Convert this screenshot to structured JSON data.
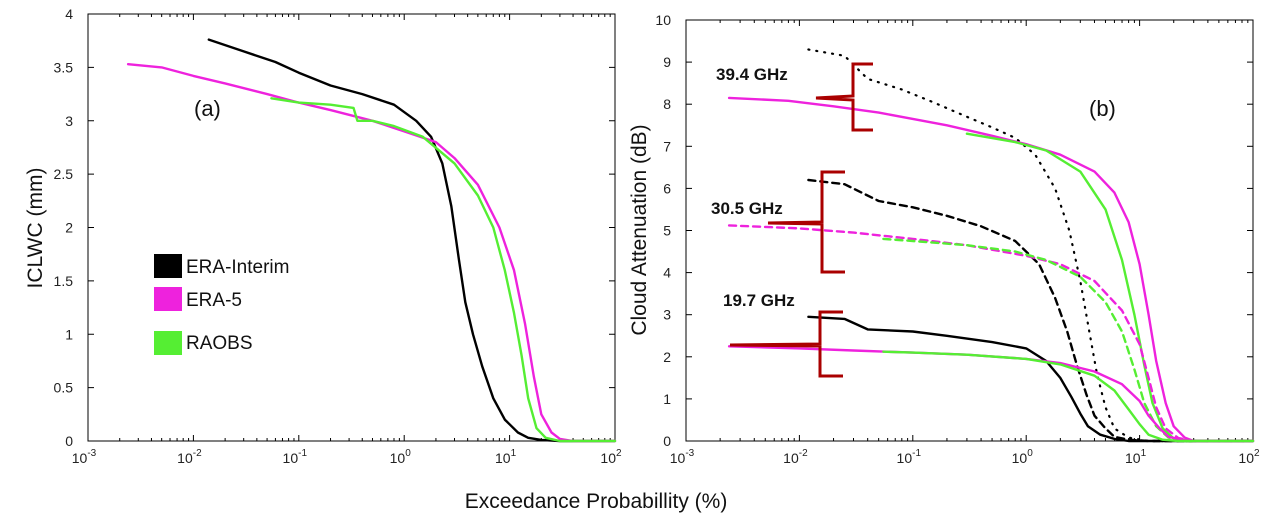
{
  "figure": {
    "xlabel": "Exceedance Probabillity (%)"
  },
  "colors": {
    "era_interim": "#000000",
    "era5": "#ee22dd",
    "raobs": "#55ee33",
    "brace": "#aa0000"
  },
  "chart_data": [
    {
      "type": "line",
      "panel_label": "(a)",
      "xscale": "log",
      "xlim": [
        0.001,
        100
      ],
      "ylim": [
        0,
        4
      ],
      "xlabel": "Exceedance Probabillity (%)",
      "ylabel": "ICLWC (mm)",
      "x_ticks": [
        {
          "v": 0.001,
          "base": "10",
          "exp": "-3"
        },
        {
          "v": 0.01,
          "base": "10",
          "exp": "-2"
        },
        {
          "v": 0.1,
          "base": "10",
          "exp": "-1"
        },
        {
          "v": 1,
          "base": "10",
          "exp": "0"
        },
        {
          "v": 10,
          "base": "10",
          "exp": "1"
        },
        {
          "v": 100,
          "base": "10",
          "exp": "2"
        }
      ],
      "y_ticks": [
        "0",
        "0.5",
        "1",
        "1.5",
        "2",
        "2.5",
        "3",
        "3.5",
        "4"
      ],
      "legend": [
        {
          "name": "ERA-Interim",
          "color": "#000000"
        },
        {
          "name": "ERA-5",
          "color": "#ee22dd"
        },
        {
          "name": "RAOBS",
          "color": "#55ee33"
        }
      ],
      "series": [
        {
          "name": "ERA-Interim",
          "color": "#000000",
          "points": [
            [
              0.014,
              3.76
            ],
            [
              0.03,
              3.65
            ],
            [
              0.06,
              3.55
            ],
            [
              0.1,
              3.45
            ],
            [
              0.2,
              3.33
            ],
            [
              0.4,
              3.25
            ],
            [
              0.8,
              3.15
            ],
            [
              1.3,
              3.0
            ],
            [
              1.8,
              2.85
            ],
            [
              2.3,
              2.6
            ],
            [
              2.8,
              2.2
            ],
            [
              3.3,
              1.7
            ],
            [
              3.8,
              1.3
            ],
            [
              4.5,
              1.0
            ],
            [
              5.5,
              0.7
            ],
            [
              7,
              0.4
            ],
            [
              9,
              0.2
            ],
            [
              12,
              0.08
            ],
            [
              15,
              0.03
            ],
            [
              20,
              0.01
            ],
            [
              30,
              0
            ],
            [
              100,
              0
            ]
          ]
        },
        {
          "name": "ERA-5",
          "color": "#ee22dd",
          "points": [
            [
              0.0024,
              3.53
            ],
            [
              0.005,
              3.5
            ],
            [
              0.01,
              3.42
            ],
            [
              0.02,
              3.35
            ],
            [
              0.05,
              3.25
            ],
            [
              0.1,
              3.17
            ],
            [
              0.2,
              3.1
            ],
            [
              0.5,
              3.0
            ],
            [
              1,
              2.9
            ],
            [
              2,
              2.8
            ],
            [
              3,
              2.65
            ],
            [
              5,
              2.4
            ],
            [
              8,
              2.0
            ],
            [
              11,
              1.6
            ],
            [
              14,
              1.1
            ],
            [
              17,
              0.6
            ],
            [
              20,
              0.25
            ],
            [
              25,
              0.08
            ],
            [
              30,
              0.02
            ],
            [
              40,
              0
            ],
            [
              100,
              0
            ]
          ]
        },
        {
          "name": "RAOBS",
          "color": "#55ee33",
          "points": [
            [
              0.055,
              3.21
            ],
            [
              0.1,
              3.17
            ],
            [
              0.2,
              3.15
            ],
            [
              0.33,
              3.12
            ],
            [
              0.36,
              3.0
            ],
            [
              0.5,
              3.0
            ],
            [
              0.8,
              2.95
            ],
            [
              1.5,
              2.85
            ],
            [
              3,
              2.6
            ],
            [
              5,
              2.3
            ],
            [
              7,
              2.0
            ],
            [
              9,
              1.6
            ],
            [
              11,
              1.2
            ],
            [
              13,
              0.8
            ],
            [
              15,
              0.4
            ],
            [
              18,
              0.12
            ],
            [
              22,
              0.03
            ],
            [
              30,
              0
            ],
            [
              100,
              0
            ]
          ]
        }
      ]
    },
    {
      "type": "line",
      "panel_label": "(b)",
      "xscale": "log",
      "xlim": [
        0.001,
        100
      ],
      "ylim": [
        0,
        10
      ],
      "xlabel": "Exceedance Probabillity (%)",
      "ylabel": "Cloud Attenuation (dB)",
      "x_ticks": [
        {
          "v": 0.001,
          "base": "10",
          "exp": "-3"
        },
        {
          "v": 0.01,
          "base": "10",
          "exp": "-2"
        },
        {
          "v": 0.1,
          "base": "10",
          "exp": "-1"
        },
        {
          "v": 1,
          "base": "10",
          "exp": "0"
        },
        {
          "v": 10,
          "base": "10",
          "exp": "1"
        },
        {
          "v": 100,
          "base": "10",
          "exp": "2"
        }
      ],
      "y_ticks": [
        "0",
        "1",
        "2",
        "3",
        "4",
        "5",
        "6",
        "7",
        "8",
        "9",
        "10"
      ],
      "annotations": [
        "39.4 GHz",
        "30.5 GHz",
        "19.7 GHz"
      ],
      "series": [
        {
          "name": "ERA-Interim 39.4 GHz",
          "color": "#000000",
          "style": "dotted",
          "points": [
            [
              0.012,
              9.3
            ],
            [
              0.025,
              9.15
            ],
            [
              0.04,
              8.6
            ],
            [
              0.08,
              8.35
            ],
            [
              0.15,
              8.05
            ],
            [
              0.3,
              7.7
            ],
            [
              0.5,
              7.45
            ],
            [
              0.8,
              7.2
            ],
            [
              1.2,
              6.8
            ],
            [
              1.8,
              6.0
            ],
            [
              2.4,
              5.0
            ],
            [
              3,
              3.8
            ],
            [
              3.6,
              2.6
            ],
            [
              4.2,
              1.6
            ],
            [
              5,
              0.8
            ],
            [
              6,
              0.3
            ],
            [
              8,
              0.08
            ],
            [
              12,
              0
            ],
            [
              100,
              0
            ]
          ]
        },
        {
          "name": "ERA-5 39.4 GHz",
          "color": "#ee22dd",
          "style": "solid",
          "points": [
            [
              0.0024,
              8.15
            ],
            [
              0.008,
              8.08
            ],
            [
              0.02,
              7.95
            ],
            [
              0.05,
              7.8
            ],
            [
              0.1,
              7.65
            ],
            [
              0.2,
              7.5
            ],
            [
              0.5,
              7.25
            ],
            [
              1,
              7.05
            ],
            [
              2,
              6.8
            ],
            [
              4,
              6.4
            ],
            [
              6,
              5.9
            ],
            [
              8,
              5.2
            ],
            [
              10,
              4.2
            ],
            [
              12,
              3.0
            ],
            [
              14,
              1.9
            ],
            [
              17,
              0.9
            ],
            [
              20,
              0.35
            ],
            [
              25,
              0.08
            ],
            [
              30,
              0
            ],
            [
              100,
              0
            ]
          ]
        },
        {
          "name": "RAOBS 39.4 GHz",
          "color": "#55ee33",
          "style": "solid",
          "points": [
            [
              0.3,
              7.3
            ],
            [
              0.8,
              7.1
            ],
            [
              1.5,
              6.9
            ],
            [
              3,
              6.4
            ],
            [
              5,
              5.5
            ],
            [
              7,
              4.3
            ],
            [
              9,
              3.0
            ],
            [
              11,
              1.8
            ],
            [
              13,
              0.9
            ],
            [
              16,
              0.3
            ],
            [
              20,
              0.06
            ],
            [
              28,
              0
            ],
            [
              100,
              0
            ]
          ]
        },
        {
          "name": "ERA-Interim 30.5 GHz",
          "color": "#000000",
          "style": "dashed",
          "points": [
            [
              0.012,
              6.2
            ],
            [
              0.025,
              6.1
            ],
            [
              0.05,
              5.7
            ],
            [
              0.1,
              5.55
            ],
            [
              0.2,
              5.35
            ],
            [
              0.4,
              5.1
            ],
            [
              0.8,
              4.75
            ],
            [
              1.3,
              4.2
            ],
            [
              1.8,
              3.4
            ],
            [
              2.3,
              2.6
            ],
            [
              2.8,
              1.8
            ],
            [
              3.4,
              1.1
            ],
            [
              4,
              0.6
            ],
            [
              5,
              0.3
            ],
            [
              6,
              0.1
            ],
            [
              8,
              0.03
            ],
            [
              12,
              0
            ],
            [
              100,
              0
            ]
          ]
        },
        {
          "name": "ERA-5 30.5 GHz",
          "color": "#ee22dd",
          "style": "dashed",
          "points": [
            [
              0.0024,
              5.12
            ],
            [
              0.01,
              5.05
            ],
            [
              0.03,
              4.95
            ],
            [
              0.1,
              4.8
            ],
            [
              0.3,
              4.65
            ],
            [
              1,
              4.4
            ],
            [
              2,
              4.2
            ],
            [
              4,
              3.8
            ],
            [
              7,
              3.1
            ],
            [
              10,
              2.3
            ],
            [
              12,
              1.5
            ],
            [
              14,
              0.8
            ],
            [
              17,
              0.3
            ],
            [
              22,
              0.07
            ],
            [
              30,
              0
            ],
            [
              100,
              0
            ]
          ]
        },
        {
          "name": "RAOBS 30.5 GHz",
          "color": "#55ee33",
          "style": "dashed",
          "points": [
            [
              0.055,
              4.8
            ],
            [
              0.1,
              4.75
            ],
            [
              0.3,
              4.65
            ],
            [
              0.8,
              4.5
            ],
            [
              1.5,
              4.3
            ],
            [
              3,
              3.9
            ],
            [
              5,
              3.3
            ],
            [
              7,
              2.6
            ],
            [
              9,
              1.7
            ],
            [
              11,
              0.9
            ],
            [
              14,
              0.35
            ],
            [
              18,
              0.08
            ],
            [
              25,
              0
            ],
            [
              100,
              0
            ]
          ]
        },
        {
          "name": "ERA-Interim 19.7 GHz",
          "color": "#000000",
          "style": "solid",
          "points": [
            [
              0.012,
              2.95
            ],
            [
              0.025,
              2.9
            ],
            [
              0.04,
              2.65
            ],
            [
              0.1,
              2.6
            ],
            [
              0.2,
              2.5
            ],
            [
              0.5,
              2.35
            ],
            [
              1,
              2.2
            ],
            [
              1.5,
              1.9
            ],
            [
              2,
              1.5
            ],
            [
              2.5,
              1.05
            ],
            [
              3,
              0.65
            ],
            [
              3.5,
              0.35
            ],
            [
              4.5,
              0.15
            ],
            [
              6,
              0.05
            ],
            [
              8,
              0
            ],
            [
              100,
              0
            ]
          ]
        },
        {
          "name": "ERA-5 19.7 GHz",
          "color": "#ee22dd",
          "style": "solid",
          "points": [
            [
              0.0024,
              2.25
            ],
            [
              0.01,
              2.2
            ],
            [
              0.03,
              2.15
            ],
            [
              0.1,
              2.1
            ],
            [
              0.3,
              2.05
            ],
            [
              1,
              1.95
            ],
            [
              2,
              1.85
            ],
            [
              4,
              1.65
            ],
            [
              7,
              1.35
            ],
            [
              10,
              0.95
            ],
            [
              12,
              0.6
            ],
            [
              15,
              0.3
            ],
            [
              18,
              0.1
            ],
            [
              25,
              0.02
            ],
            [
              30,
              0
            ],
            [
              100,
              0
            ]
          ]
        },
        {
          "name": "RAOBS 19.7 GHz",
          "color": "#55ee33",
          "style": "solid",
          "points": [
            [
              0.055,
              2.12
            ],
            [
              0.1,
              2.1
            ],
            [
              0.3,
              2.05
            ],
            [
              1,
              1.95
            ],
            [
              2,
              1.82
            ],
            [
              4,
              1.55
            ],
            [
              6,
              1.2
            ],
            [
              8,
              0.75
            ],
            [
              10,
              0.4
            ],
            [
              12,
              0.15
            ],
            [
              16,
              0.03
            ],
            [
              22,
              0
            ],
            [
              100,
              0
            ]
          ]
        }
      ]
    }
  ]
}
